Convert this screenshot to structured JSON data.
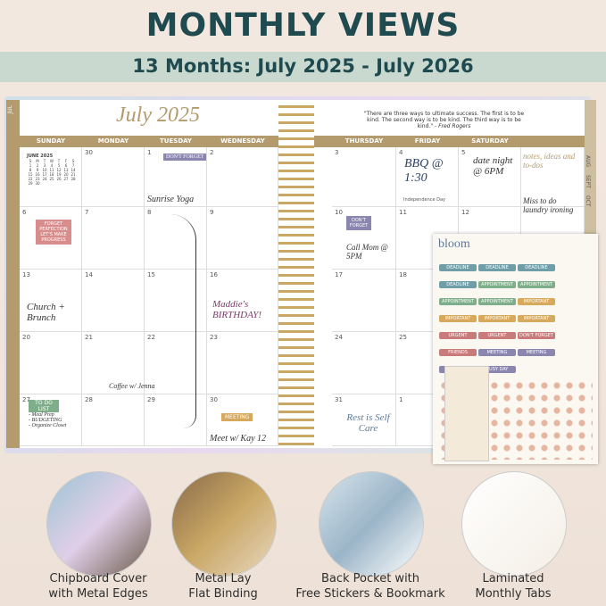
{
  "header": {
    "title": "MONTHLY VIEWS",
    "subtitle": "13 Months: July 2025 - July 2026"
  },
  "planner": {
    "month": "July 2025",
    "quote": "\"There are three ways to ultimate success. The first is to be kind. The second way is to be kind. The third way is to be kind.\"",
    "quote_author": "- Fred Rogers",
    "left_days": [
      "SUNDAY",
      "MONDAY",
      "TUESDAY",
      "WEDNESDAY"
    ],
    "right_days": [
      "THURSDAY",
      "FRIDAY",
      "SATURDAY"
    ],
    "left_dates": [
      [
        null,
        30,
        1,
        2
      ],
      [
        6,
        7,
        8,
        9
      ],
      [
        13,
        14,
        15,
        16
      ],
      [
        20,
        21,
        22,
        23
      ],
      [
        27,
        28,
        29,
        30
      ]
    ],
    "right_dates": [
      [
        3,
        4,
        5,
        null
      ],
      [
        10,
        11,
        12,
        null
      ],
      [
        17,
        18,
        null,
        null
      ],
      [
        24,
        25,
        null,
        null
      ],
      [
        31,
        1,
        null,
        null
      ]
    ],
    "mini_calendar": {
      "title": "JUNE 2025",
      "weekdays": [
        "S",
        "M",
        "T",
        "W",
        "T",
        "F",
        "S"
      ],
      "weeks": [
        [
          1,
          2,
          3,
          4,
          5,
          6,
          7
        ],
        [
          8,
          9,
          10,
          11,
          12,
          13,
          14
        ],
        [
          15,
          16,
          17,
          18,
          19,
          20,
          21
        ],
        [
          22,
          23,
          24,
          25,
          26,
          27,
          28
        ],
        [
          29,
          30
        ]
      ]
    },
    "notes": [
      "DON'T FORGET",
      "Sunrise Yoga",
      "FORGET PERFECTION LET'S MAKE PROGRESS",
      "Church + Brunch",
      "Coffee w/ Jenna",
      "Maddie's BIRTHDAY!",
      "MEETING",
      "Meet w/ Kay 12",
      "TO DO LIST",
      "- Meal Prep",
      "- BUDGETING",
      "- Organize Closet",
      "BBQ @ 1:30",
      "Independence Day",
      "date night @ 6PM",
      "notes, ideas and to-dos",
      "Miss to do laundry ironing",
      "DON'T FORGET",
      "Call Mom @ 5PM",
      "Rest is Self Care"
    ],
    "tabs": [
      "JUL",
      "AUG",
      "SEPT",
      "OCT"
    ]
  },
  "stickers": {
    "title": "bloom",
    "labels": [
      "DEADLINE",
      "DEADLINE",
      "DEADLINE",
      "DEADLINE",
      "APPOINTMENT",
      "APPOINTMENT",
      "APPOINTMENT",
      "APPOINTMENT",
      "IMPORTANT",
      "IMPORTANT",
      "IMPORTANT",
      "IMPORTANT",
      "URGENT",
      "URGENT",
      "DON'T FORGET",
      "FRIENDS",
      "MEETING",
      "MEETING",
      "BUSY DAY",
      "BUSY DAY"
    ]
  },
  "features": [
    {
      "lines": [
        "Chipboard Cover",
        "with Metal Edges"
      ]
    },
    {
      "lines": [
        "Metal Lay",
        "Flat Binding"
      ]
    },
    {
      "lines": [
        "Back Pocket with",
        "Free Stickers & Bookmark"
      ]
    },
    {
      "lines": [
        "Laminated",
        "Monthly Tabs"
      ]
    }
  ]
}
